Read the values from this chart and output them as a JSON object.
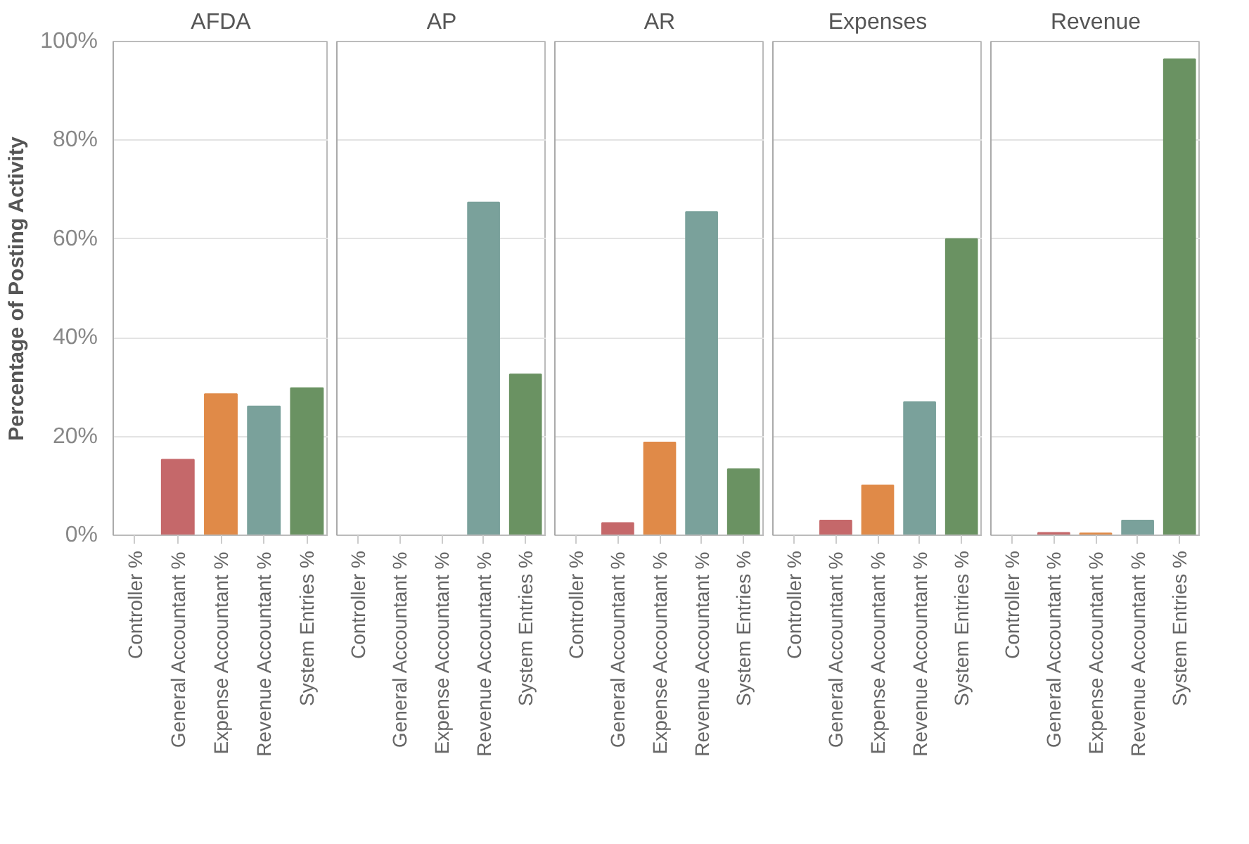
{
  "chart_data": [
    {
      "type": "bar",
      "title": "AFDA",
      "ylabel": "Percentage of Posting Activity",
      "categories": [
        "Controller %",
        "General Accountant %",
        "Expense Accountant %",
        "Revenue Accountant %",
        "System Entries %"
      ],
      "values": [
        0,
        15.3,
        28.6,
        26.1,
        29.8
      ],
      "colors": [
        "#4e79a7",
        "#c5686a",
        "#e08a48",
        "#7aa19b",
        "#6a9262"
      ],
      "ylim": [
        0,
        100
      ],
      "yticks": [
        {
          "value": 0,
          "label": "0%"
        },
        {
          "value": 20,
          "label": "20%"
        },
        {
          "value": 40,
          "label": "40%"
        },
        {
          "value": 60,
          "label": "60%"
        },
        {
          "value": 80,
          "label": "80%"
        },
        {
          "value": 100,
          "label": "100%"
        }
      ],
      "grid": "y"
    },
    {
      "type": "bar",
      "title": "AP",
      "categories": [
        "Controller %",
        "General Accountant %",
        "Expense Accountant %",
        "Revenue Accountant %",
        "System Entries %"
      ],
      "values": [
        0,
        0,
        0,
        67.4,
        32.6
      ],
      "colors": [
        "#4e79a7",
        "#c5686a",
        "#e08a48",
        "#7aa19b",
        "#6a9262"
      ],
      "ylim": [
        0,
        100
      ],
      "yticks": [
        0,
        20,
        40,
        60,
        80,
        100
      ],
      "grid": "y",
      "tick_labels": "x"
    },
    {
      "type": "bar",
      "title": "AR",
      "categories": [
        "Controller %",
        "General Accountant %",
        "Expense Accountant %",
        "Revenue Accountant %",
        "System Entries %"
      ],
      "values": [
        0,
        2.5,
        18.8,
        65.5,
        13.4
      ],
      "colors": [
        "#4e79a7",
        "#c5686a",
        "#e08a48",
        "#7aa19b",
        "#6a9262"
      ],
      "ylim": [
        0,
        100
      ],
      "yticks": [
        0,
        20,
        40,
        60,
        80,
        100
      ],
      "grid": "y",
      "tick_labels": "x"
    },
    {
      "type": "bar",
      "title": "Expenses",
      "categories": [
        "Controller %",
        "General Accountant %",
        "Expense Accountant %",
        "Revenue Accountant %",
        "System Entries %"
      ],
      "values": [
        0,
        3.0,
        10.1,
        27.0,
        60.0
      ],
      "colors": [
        "#4e79a7",
        "#c5686a",
        "#e08a48",
        "#7aa19b",
        "#6a9262"
      ],
      "ylim": [
        0,
        100
      ],
      "yticks": [
        0,
        20,
        40,
        60,
        80,
        100
      ],
      "grid": "y",
      "tick_labels": "x"
    },
    {
      "type": "bar",
      "title": "Revenue",
      "categories": [
        "Controller %",
        "General Accountant %",
        "Expense Accountant %",
        "Revenue Accountant %",
        "System Entries %"
      ],
      "values": [
        0,
        0.5,
        0.4,
        3.0,
        96.4
      ],
      "colors": [
        "#4e79a7",
        "#c5686a",
        "#e08a48",
        "#7aa19b",
        "#6a9262"
      ],
      "ylim": [
        0,
        100
      ],
      "yticks": [
        0,
        20,
        40,
        60,
        80,
        100
      ],
      "grid": "y",
      "tick_labels": "x"
    }
  ]
}
